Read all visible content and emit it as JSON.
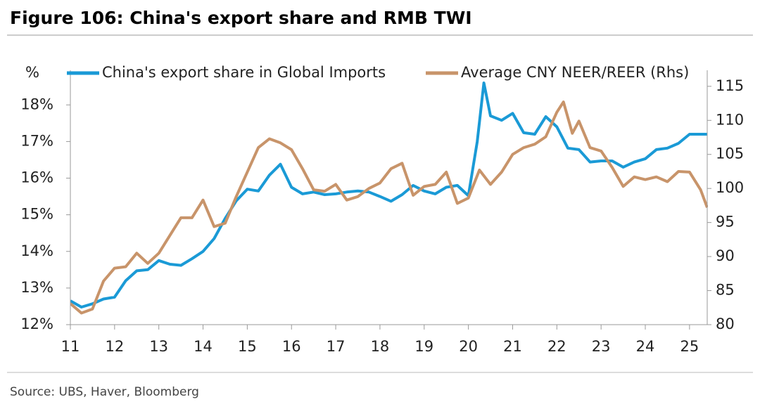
{
  "chart_data": {
    "type": "line",
    "title": "Figure 106: China's export share and RMB TWI",
    "y_label": "%",
    "source": "Source: UBS, Haver, Bloomberg",
    "xlim": [
      11,
      25.4
    ],
    "xticks": [
      11,
      12,
      13,
      14,
      15,
      16,
      17,
      18,
      19,
      20,
      21,
      22,
      23,
      24,
      25
    ],
    "ylim": [
      12,
      18.6
    ],
    "yticks": [
      {
        "value": 12,
        "label": "12%"
      },
      {
        "value": 13,
        "label": "13%"
      },
      {
        "value": 14,
        "label": "14%"
      },
      {
        "value": 15,
        "label": "15%"
      },
      {
        "value": 16,
        "label": "16%"
      },
      {
        "value": 17,
        "label": "17%"
      },
      {
        "value": 18,
        "label": "18%"
      }
    ],
    "y2lim": [
      80,
      115.5
    ],
    "y2ticks": [
      80,
      85,
      90,
      95,
      100,
      105,
      110,
      115
    ],
    "series": [
      {
        "name": "China's export share in Global Imports",
        "color": "#1a9ad6",
        "x": [
          11,
          11.25,
          11.5,
          11.75,
          12,
          12.25,
          12.5,
          12.75,
          13,
          13.25,
          13.5,
          13.75,
          14,
          14.25,
          14.5,
          14.75,
          15,
          15.25,
          15.5,
          15.75,
          16,
          16.25,
          16.5,
          16.75,
          17,
          17.25,
          17.5,
          17.75,
          18,
          18.25,
          18.5,
          18.75,
          19,
          19.25,
          19.5,
          19.75,
          20,
          20.2,
          20.35,
          20.5,
          20.75,
          21,
          21.25,
          21.5,
          21.75,
          22,
          22.25,
          22.5,
          22.75,
          23,
          23.25,
          23.5,
          23.75,
          24,
          24.25,
          24.5,
          24.75,
          25,
          25.4
        ],
        "values": [
          12.65,
          12.48,
          12.57,
          12.7,
          12.75,
          13.2,
          13.47,
          13.5,
          13.75,
          13.65,
          13.62,
          13.8,
          14.0,
          14.35,
          14.9,
          15.38,
          15.7,
          15.65,
          16.08,
          16.38,
          15.75,
          15.57,
          15.62,
          15.55,
          15.57,
          15.62,
          15.65,
          15.62,
          15.5,
          15.37,
          15.55,
          15.8,
          15.65,
          15.57,
          15.75,
          15.8,
          15.52,
          17.0,
          18.6,
          17.7,
          17.58,
          17.77,
          17.24,
          17.2,
          17.68,
          17.4,
          16.82,
          16.78,
          16.44,
          16.47,
          16.47,
          16.3,
          16.44,
          16.53,
          16.78,
          16.82,
          16.95,
          17.2,
          17.2
        ]
      },
      {
        "name": "Average CNY NEER/REER (Rhs)",
        "color": "#c8946a",
        "axis": "y2",
        "x": [
          11,
          11.25,
          11.5,
          11.75,
          12,
          12.25,
          12.5,
          12.75,
          13,
          13.25,
          13.5,
          13.75,
          14,
          14.25,
          14.5,
          14.75,
          15,
          15.25,
          15.5,
          15.75,
          16,
          16.25,
          16.5,
          16.75,
          17,
          17.25,
          17.5,
          17.75,
          18,
          18.25,
          18.5,
          18.75,
          19,
          19.25,
          19.5,
          19.75,
          20,
          20.25,
          20.5,
          20.75,
          21,
          21.25,
          21.5,
          21.75,
          22,
          22.15,
          22.35,
          22.5,
          22.75,
          23,
          23.25,
          23.5,
          23.75,
          24,
          24.25,
          24.5,
          24.75,
          25,
          25.25,
          25.4
        ],
        "values": [
          83.1,
          81.7,
          82.3,
          86.4,
          88.3,
          88.5,
          90.5,
          89.0,
          90.5,
          93.1,
          95.7,
          95.7,
          98.3,
          94.4,
          94.9,
          98.8,
          102.4,
          106.0,
          107.3,
          106.7,
          105.7,
          102.9,
          99.8,
          99.6,
          100.6,
          98.3,
          98.8,
          100.0,
          100.8,
          102.9,
          103.7,
          99.0,
          100.3,
          100.6,
          102.4,
          97.8,
          98.6,
          102.7,
          100.6,
          102.4,
          105.0,
          106.0,
          106.5,
          107.6,
          111.2,
          112.7,
          108.1,
          109.9,
          106.0,
          105.5,
          103.1,
          100.3,
          101.7,
          101.3,
          101.7,
          101.0,
          102.5,
          102.4,
          99.8,
          97.2
        ]
      }
    ]
  }
}
